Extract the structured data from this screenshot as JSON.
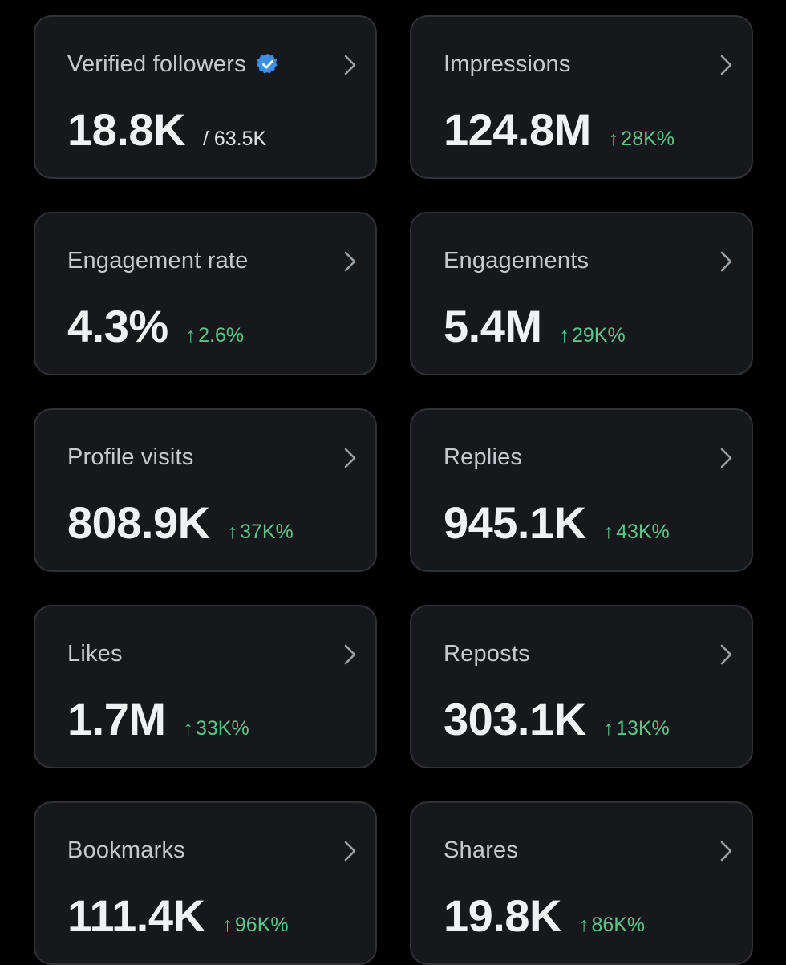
{
  "colors": {
    "background": "#000000",
    "card_background": "#16181c",
    "card_border": "#2f3336",
    "label": "#c6cacf",
    "value": "#eff1f3",
    "positive_change": "#5fc48a",
    "verified_badge": "#3d8fe8"
  },
  "icons": {
    "chevron": "chevron-right-icon",
    "verified": "verified-badge-icon",
    "trend": "arrow-up-icon"
  },
  "metrics": [
    {
      "label": "Verified followers",
      "value": "18.8K",
      "sub": "/ 63.5K"
    },
    {
      "label": "Impressions",
      "value": "124.8M",
      "arrow": "↑",
      "change": "28K%"
    },
    {
      "label": "Engagement rate",
      "value": "4.3%",
      "arrow": "↑",
      "change": "2.6%"
    },
    {
      "label": "Engagements",
      "value": "5.4M",
      "arrow": "↑",
      "change": "29K%"
    },
    {
      "label": "Profile visits",
      "value": "808.9K",
      "arrow": "↑",
      "change": "37K%"
    },
    {
      "label": "Replies",
      "value": "945.1K",
      "arrow": "↑",
      "change": "43K%"
    },
    {
      "label": "Likes",
      "value": "1.7M",
      "arrow": "↑",
      "change": "33K%"
    },
    {
      "label": "Reposts",
      "value": "303.1K",
      "arrow": "↑",
      "change": "13K%"
    },
    {
      "label": "Bookmarks",
      "value": "111.4K",
      "arrow": "↑",
      "change": "96K%"
    },
    {
      "label": "Shares",
      "value": "19.8K",
      "arrow": "↑",
      "change": "86K%"
    }
  ]
}
